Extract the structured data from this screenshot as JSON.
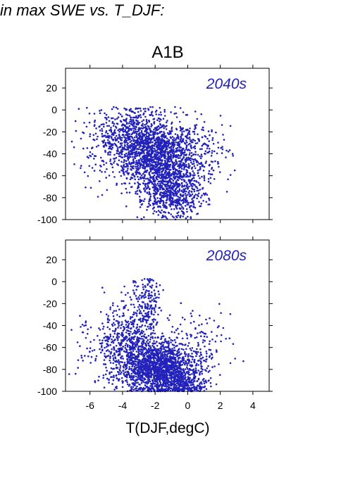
{
  "header_text": "in max SWE vs. T_DJF:",
  "figure_title": "A1B",
  "xlabel": "T(DJF,degC)",
  "colors": {
    "points": "#2222bb",
    "label": "#2222bb",
    "axis": "#000000"
  },
  "chart_data": [
    {
      "type": "scatter",
      "panel_label": "2040s",
      "xlim": [
        -7.5,
        5
      ],
      "ylim": [
        -100,
        38
      ],
      "xticks": [
        -6,
        -4,
        -2,
        0,
        2,
        4
      ],
      "yticks": [
        -100,
        -80,
        -60,
        -40,
        -20,
        0,
        20
      ],
      "grid": false,
      "series": [
        {
          "clusters": [
            {
              "cx": -1.7,
              "cy": -45,
              "sx": 1.1,
              "sy": 18,
              "n": 1500
            },
            {
              "cx": -3.3,
              "cy": -25,
              "sx": 1.0,
              "sy": 14,
              "n": 550
            },
            {
              "cx": -0.8,
              "cy": -78,
              "sx": 0.9,
              "sy": 10,
              "n": 450
            },
            {
              "cx": -5.2,
              "cy": -35,
              "sx": 0.9,
              "sy": 15,
              "n": 120
            },
            {
              "cx": 0.9,
              "cy": -40,
              "sx": 0.9,
              "sy": 15,
              "n": 140
            }
          ]
        }
      ]
    },
    {
      "type": "scatter",
      "panel_label": "2080s",
      "xlim": [
        -7.5,
        5
      ],
      "ylim": [
        -100,
        38
      ],
      "xticks": [
        -6,
        -4,
        -2,
        0,
        2,
        4
      ],
      "yticks": [
        -100,
        -80,
        -60,
        -40,
        -20,
        0,
        20
      ],
      "grid": false,
      "series": [
        {
          "clusters": [
            {
              "cx": -1.8,
              "cy": -78,
              "sx": 1.1,
              "sy": 12,
              "n": 1500
            },
            {
              "cx": -3.6,
              "cy": -55,
              "sx": 1.0,
              "sy": 18,
              "n": 550
            },
            {
              "cx": -2.5,
              "cy": -20,
              "sx": 0.4,
              "sy": 14,
              "n": 160
            },
            {
              "cx": -0.3,
              "cy": -92,
              "sx": 0.8,
              "sy": 6,
              "n": 300
            },
            {
              "cx": 0.7,
              "cy": -55,
              "sx": 1.0,
              "sy": 15,
              "n": 120
            },
            {
              "cx": -5.5,
              "cy": -60,
              "sx": 1.0,
              "sy": 18,
              "n": 80
            }
          ]
        }
      ]
    }
  ]
}
